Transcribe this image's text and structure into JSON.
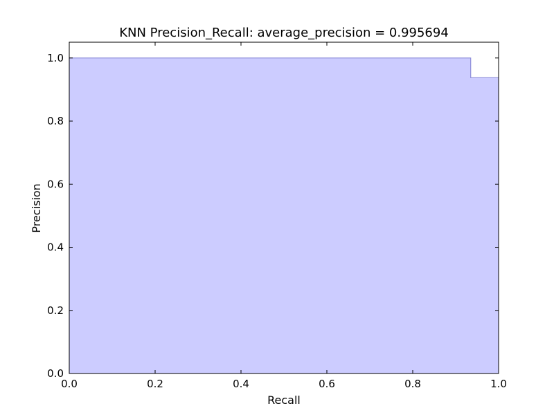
{
  "chart_data": {
    "type": "area",
    "title": "KNN Precision_Recall: average_precision = 0.995694",
    "xlabel": "Recall",
    "ylabel": "Precision",
    "xlim": [
      0.0,
      1.0
    ],
    "ylim": [
      0.0,
      1.05
    ],
    "x_ticks": [
      "0.0",
      "0.2",
      "0.4",
      "0.6",
      "0.8",
      "1.0"
    ],
    "y_ticks": [
      "0.0",
      "0.2",
      "0.4",
      "0.6",
      "0.8",
      "1.0"
    ],
    "grid": false,
    "legend": "none",
    "step_where": "post",
    "series": [
      {
        "recall": [
          0.0,
          0.935,
          0.935,
          1.0
        ],
        "precision": [
          1.0,
          1.0,
          0.9375,
          0.9375
        ],
        "fill_color": "#ccccff",
        "line_color": "#8c8cd9"
      }
    ]
  }
}
